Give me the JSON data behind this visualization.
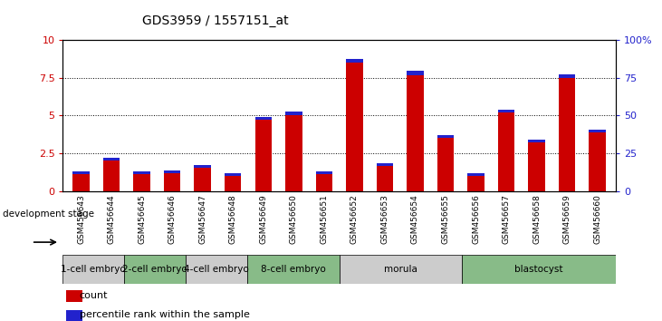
{
  "title": "GDS3959 / 1557151_at",
  "samples": [
    "GSM456643",
    "GSM456644",
    "GSM456645",
    "GSM456646",
    "GSM456647",
    "GSM456648",
    "GSM456649",
    "GSM456650",
    "GSM456651",
    "GSM456652",
    "GSM456653",
    "GSM456654",
    "GSM456655",
    "GSM456656",
    "GSM456657",
    "GSM456658",
    "GSM456659",
    "GSM456660"
  ],
  "count_values": [
    1.1,
    2.05,
    1.1,
    1.2,
    1.55,
    1.0,
    4.7,
    5.0,
    1.1,
    8.5,
    1.65,
    7.7,
    3.5,
    1.0,
    5.2,
    3.2,
    7.5,
    3.9
  ],
  "percentile_values": [
    0.18,
    0.18,
    0.18,
    0.18,
    0.18,
    0.18,
    0.18,
    0.25,
    0.18,
    0.25,
    0.18,
    0.25,
    0.18,
    0.18,
    0.18,
    0.18,
    0.25,
    0.18
  ],
  "bar_color": "#cc0000",
  "percentile_color": "#2222cc",
  "ylim_left": [
    0,
    10
  ],
  "ylim_right": [
    0,
    100
  ],
  "yticks_left": [
    0,
    2.5,
    5.0,
    7.5,
    10
  ],
  "yticks_right": [
    0,
    25,
    50,
    75,
    100
  ],
  "stages": [
    {
      "label": "1-cell embryo",
      "start": 0,
      "end": 2,
      "color": "#cccccc"
    },
    {
      "label": "2-cell embryo",
      "start": 2,
      "end": 4,
      "color": "#88bb88"
    },
    {
      "label": "4-cell embryo",
      "start": 4,
      "end": 6,
      "color": "#cccccc"
    },
    {
      "label": "8-cell embryo",
      "start": 6,
      "end": 9,
      "color": "#88bb88"
    },
    {
      "label": "morula",
      "start": 9,
      "end": 13,
      "color": "#cccccc"
    },
    {
      "label": "blastocyst",
      "start": 13,
      "end": 18,
      "color": "#88bb88"
    }
  ],
  "legend_count_label": "count",
  "legend_percentile_label": "percentile rank within the sample",
  "dev_stage_label": "development stage",
  "label_bg_color": "#bbbbbb",
  "tick_color_left": "#cc0000",
  "tick_color_right": "#2222cc"
}
